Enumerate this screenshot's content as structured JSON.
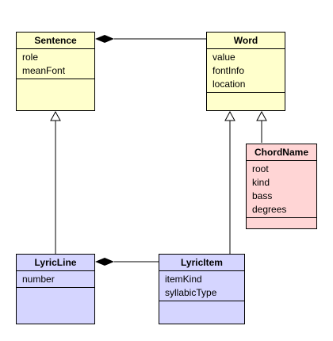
{
  "classes": {
    "sentence": {
      "name": "Sentence",
      "attributes": [
        "role",
        "meanFont"
      ]
    },
    "word": {
      "name": "Word",
      "attributes": [
        "value",
        "fontInfo",
        "location"
      ]
    },
    "chord_name": {
      "name": "ChordName",
      "attributes": [
        "root",
        "kind",
        "bass",
        "degrees"
      ]
    },
    "lyric_line": {
      "name": "LyricLine",
      "attributes": [
        "number"
      ]
    },
    "lyric_item": {
      "name": "LyricItem",
      "attributes": [
        "itemKind",
        "syllabicType"
      ]
    }
  },
  "relations": [
    {
      "type": "composition",
      "whole": "Sentence",
      "part": "Word"
    },
    {
      "type": "composition",
      "whole": "LyricLine",
      "part": "LyricItem"
    },
    {
      "type": "generalization",
      "child": "LyricLine",
      "parent": "Sentence"
    },
    {
      "type": "generalization",
      "child": "LyricItem",
      "parent": "Word"
    },
    {
      "type": "generalization",
      "child": "ChordName",
      "parent": "Word"
    }
  ],
  "colors": {
    "sentence_word_fill": "#ffffcc",
    "chord_fill": "#ffd5d5",
    "lyric_fill": "#d5d5ff",
    "line": "#000000"
  }
}
